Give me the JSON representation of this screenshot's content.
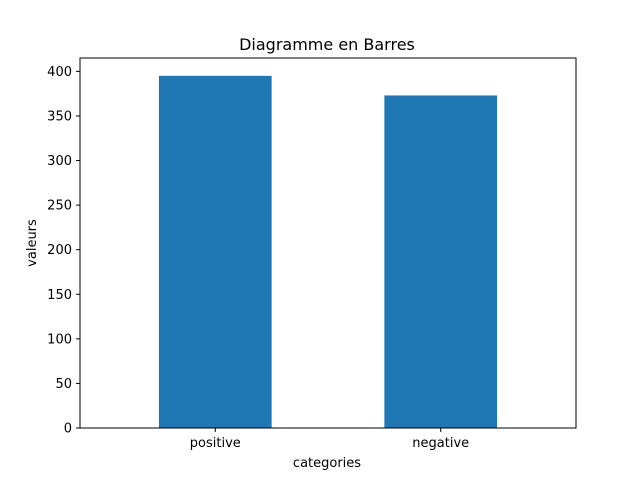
{
  "chart_data": {
    "type": "bar",
    "title": "Diagramme en Barres",
    "xlabel": "categories",
    "ylabel": "valeurs",
    "categories": [
      "positive",
      "negative"
    ],
    "values": [
      395,
      373
    ],
    "ylim": [
      0,
      415
    ],
    "yticks": [
      0,
      50,
      100,
      150,
      200,
      250,
      300,
      350,
      400
    ],
    "bar_color": "#1f77b4",
    "grid": false,
    "legend": false
  }
}
